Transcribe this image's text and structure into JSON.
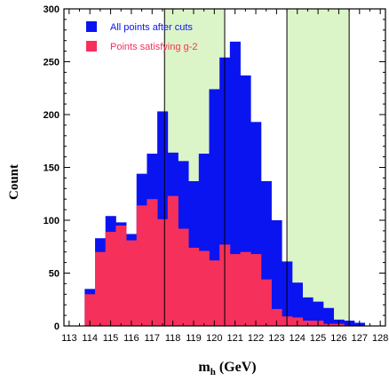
{
  "chart_data": {
    "type": "bar",
    "xlabel_main": "m",
    "xlabel_sub": "h",
    "xlabel_unit": " (GeV)",
    "ylabel": "Count",
    "xlim": [
      112.75,
      128.25
    ],
    "ylim": [
      0,
      300
    ],
    "x_ticks": [
      113,
      114,
      115,
      116,
      117,
      118,
      119,
      120,
      121,
      122,
      123,
      124,
      125,
      126,
      127,
      128
    ],
    "y_ticks": [
      0,
      50,
      100,
      150,
      200,
      250,
      300
    ],
    "bin_width": 0.5,
    "bin_starts": [
      113.75,
      114.25,
      114.75,
      115.25,
      115.75,
      116.25,
      116.75,
      117.25,
      117.75,
      118.25,
      118.75,
      119.25,
      119.75,
      120.25,
      120.75,
      121.25,
      121.75,
      122.25,
      122.75,
      123.25,
      123.75,
      124.25,
      124.75,
      125.25,
      125.75,
      126.25,
      126.75
    ],
    "series": [
      {
        "name": "All points after cuts",
        "color": "#0a14f0",
        "values": [
          35,
          83,
          104,
          98,
          87,
          144,
          163,
          203,
          164,
          156,
          137,
          163,
          224,
          254,
          269,
          237,
          193,
          137,
          100,
          61,
          41,
          27,
          23,
          17,
          6,
          5,
          3
        ]
      },
      {
        "name": "Points satisfying g-2",
        "color": "#f5305a",
        "values": [
          30,
          70,
          89,
          95,
          81,
          114,
          120,
          101,
          123,
          92,
          74,
          71,
          62,
          77,
          68,
          70,
          68,
          44,
          16,
          9,
          8,
          5,
          5,
          2,
          2,
          0,
          0
        ]
      }
    ],
    "bands": [
      {
        "color": "#dcf5c8",
        "x0": 117.6,
        "x1": 120.5
      },
      {
        "color": "#dcf5c8",
        "x0": 123.5,
        "x1": 126.5
      }
    ],
    "legend_position": "top-left"
  }
}
